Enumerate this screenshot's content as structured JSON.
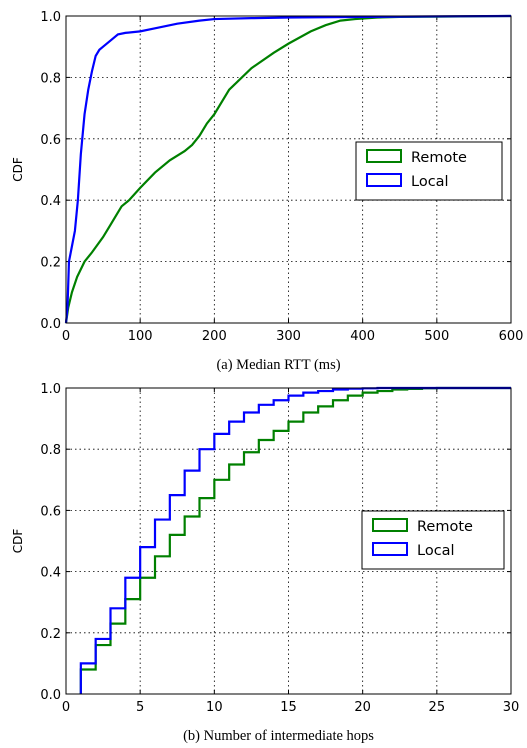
{
  "chart_data": [
    {
      "type": "line",
      "caption": "(a) Median RTT (ms)",
      "xlabel": "",
      "ylabel": "CDF",
      "xlim": [
        0,
        600
      ],
      "ylim": [
        0,
        1
      ],
      "xticks": [
        "0",
        "100",
        "200",
        "300",
        "400",
        "500",
        "600"
      ],
      "yticks": [
        "0.0",
        "0.2",
        "0.4",
        "0.6",
        "0.8",
        "1.0"
      ],
      "grid": true,
      "legend_position": "center-right",
      "series": [
        {
          "name": "Remote",
          "color": "#008000",
          "x": [
            0,
            3,
            8,
            15,
            25,
            35,
            50,
            60,
            70,
            75,
            85,
            100,
            120,
            140,
            160,
            170,
            180,
            190,
            200,
            220,
            250,
            280,
            300,
            330,
            350,
            370,
            390,
            420,
            450,
            500,
            550,
            600
          ],
          "y": [
            0.0,
            0.05,
            0.1,
            0.15,
            0.2,
            0.23,
            0.28,
            0.32,
            0.36,
            0.38,
            0.4,
            0.44,
            0.49,
            0.53,
            0.56,
            0.58,
            0.61,
            0.65,
            0.68,
            0.76,
            0.83,
            0.88,
            0.91,
            0.95,
            0.97,
            0.985,
            0.99,
            0.995,
            0.997,
            0.998,
            0.999,
            1.0
          ]
        },
        {
          "name": "Local",
          "color": "#0000ff",
          "x": [
            0,
            2,
            4,
            8,
            12,
            16,
            20,
            25,
            30,
            35,
            40,
            45,
            50,
            60,
            70,
            80,
            100,
            120,
            150,
            180,
            200,
            250,
            300,
            400,
            500,
            600
          ],
          "y": [
            0.0,
            0.05,
            0.2,
            0.25,
            0.3,
            0.4,
            0.55,
            0.68,
            0.76,
            0.82,
            0.87,
            0.89,
            0.9,
            0.92,
            0.94,
            0.945,
            0.95,
            0.96,
            0.975,
            0.985,
            0.99,
            0.993,
            0.995,
            0.997,
            0.999,
            1.0
          ]
        }
      ]
    },
    {
      "type": "line",
      "caption": "(b) Number of intermediate hops",
      "xlabel": "",
      "ylabel": "CDF",
      "xlim": [
        0,
        30
      ],
      "ylim": [
        0,
        1
      ],
      "xticks": [
        "0",
        "5",
        "10",
        "15",
        "20",
        "25",
        "30"
      ],
      "yticks": [
        "0.0",
        "0.2",
        "0.4",
        "0.6",
        "0.8",
        "1.0"
      ],
      "grid": true,
      "legend_position": "center-right",
      "step": true,
      "series": [
        {
          "name": "Remote",
          "color": "#008000",
          "x": [
            1,
            2,
            3,
            4,
            5,
            6,
            7,
            8,
            9,
            10,
            11,
            12,
            13,
            14,
            15,
            16,
            17,
            18,
            19,
            20,
            21,
            22,
            23,
            24,
            25,
            30
          ],
          "y": [
            0.08,
            0.16,
            0.23,
            0.31,
            0.38,
            0.45,
            0.52,
            0.58,
            0.64,
            0.7,
            0.75,
            0.79,
            0.83,
            0.86,
            0.89,
            0.92,
            0.94,
            0.96,
            0.975,
            0.985,
            0.99,
            0.995,
            0.997,
            0.999,
            1.0,
            1.0
          ]
        },
        {
          "name": "Local",
          "color": "#0000ff",
          "x": [
            1,
            2,
            3,
            4,
            5,
            6,
            7,
            8,
            9,
            10,
            11,
            12,
            13,
            14,
            15,
            16,
            17,
            18,
            19,
            20,
            21,
            22,
            30
          ],
          "y": [
            0.1,
            0.18,
            0.28,
            0.38,
            0.48,
            0.57,
            0.65,
            0.73,
            0.8,
            0.85,
            0.89,
            0.92,
            0.945,
            0.96,
            0.975,
            0.985,
            0.99,
            0.995,
            0.998,
            0.999,
            1.0,
            1.0,
            1.0
          ]
        }
      ]
    }
  ]
}
